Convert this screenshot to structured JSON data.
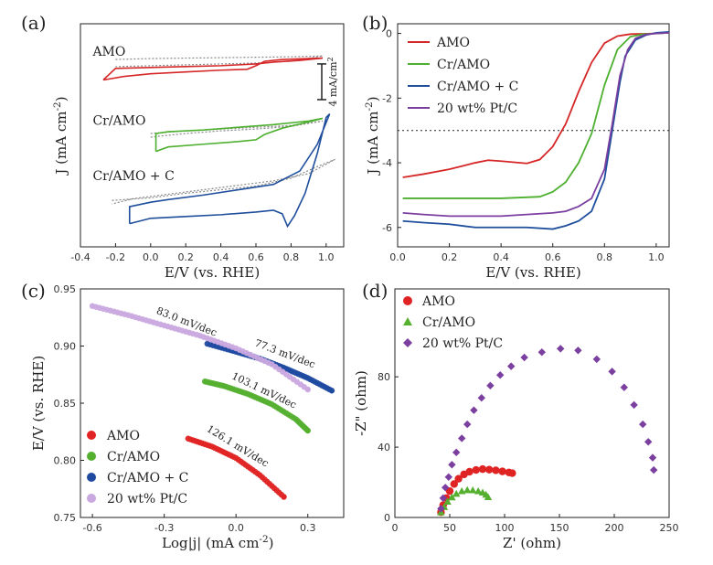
{
  "figure": {
    "panel_labels": [
      "(a)",
      "(b)",
      "(c)",
      "(d)"
    ]
  },
  "chart_data": [
    {
      "id": "a",
      "type": "line",
      "xlabel": "E/V (vs. RHE)",
      "ylabel": "J (mA cm",
      "ylabel_sup": "-2",
      "ylabel_close": ")",
      "xlim": [
        -0.4,
        1.1
      ],
      "xticks": [
        -0.4,
        -0.2,
        0.0,
        0.2,
        0.4,
        0.6,
        0.8,
        1.0
      ],
      "xticklabels": [
        "-0.4",
        "-0.2",
        "0.0",
        "0.2",
        "0.4",
        "0.6",
        "0.8",
        "1.0"
      ],
      "ylim": [
        -23,
        2
      ],
      "scalebar_label": "4 mA/cm",
      "scalebar_sup": "2",
      "scalebar": [
        -2.5,
        -6.5
      ],
      "series": [
        {
          "name": "AMO",
          "color": "#d62728",
          "label_at": [
            -0.33,
            -1.6
          ],
          "solid": [
            [
              -0.27,
              -4.3
            ],
            [
              -0.15,
              -3.9
            ],
            [
              0.0,
              -3.6
            ],
            [
              0.2,
              -3.4
            ],
            [
              0.4,
              -3.2
            ],
            [
              0.55,
              -3.1
            ],
            [
              0.6,
              -2.7
            ],
            [
              0.65,
              -2.2
            ],
            [
              0.75,
              -2.0
            ],
            [
              0.9,
              -1.9
            ],
            [
              0.98,
              -1.85
            ],
            [
              0.85,
              -2.1
            ],
            [
              0.7,
              -2.3
            ],
            [
              0.6,
              -2.5
            ],
            [
              0.4,
              -2.7
            ],
            [
              0.2,
              -2.8
            ],
            [
              0.0,
              -2.9
            ],
            [
              -0.2,
              -3.0
            ],
            [
              -0.27,
              -4.3
            ]
          ],
          "dotted": [
            [
              -0.2,
              -2.0
            ],
            [
              0.0,
              -1.9
            ],
            [
              0.2,
              -1.85
            ],
            [
              0.4,
              -1.8
            ],
            [
              0.6,
              -1.75
            ],
            [
              0.8,
              -1.7
            ],
            [
              0.98,
              -1.6
            ],
            [
              0.8,
              -2.2
            ],
            [
              0.6,
              -2.4
            ],
            [
              0.4,
              -2.5
            ],
            [
              0.2,
              -2.6
            ],
            [
              0.0,
              -2.7
            ],
            [
              -0.2,
              -2.8
            ]
          ]
        },
        {
          "name": "Cr/AMO",
          "color": "#4caf2e",
          "label_at": [
            -0.33,
            -9.3
          ],
          "solid": [
            [
              0.03,
              -12.3
            ],
            [
              0.1,
              -11.8
            ],
            [
              0.3,
              -11.5
            ],
            [
              0.5,
              -11.2
            ],
            [
              0.6,
              -11.0
            ],
            [
              0.65,
              -10.4
            ],
            [
              0.75,
              -9.7
            ],
            [
              0.9,
              -9.0
            ],
            [
              0.98,
              -8.6
            ],
            [
              0.9,
              -8.9
            ],
            [
              0.7,
              -9.3
            ],
            [
              0.5,
              -9.6
            ],
            [
              0.3,
              -9.9
            ],
            [
              0.1,
              -10.1
            ],
            [
              0.03,
              -10.3
            ],
            [
              0.03,
              -12.3
            ]
          ],
          "dotted": [
            [
              0.0,
              -10.7
            ],
            [
              0.2,
              -10.3
            ],
            [
              0.4,
              -10.0
            ],
            [
              0.6,
              -9.8
            ],
            [
              0.8,
              -9.5
            ],
            [
              0.98,
              -8.9
            ],
            [
              0.8,
              -9.4
            ],
            [
              0.6,
              -9.6
            ],
            [
              0.4,
              -9.8
            ],
            [
              0.2,
              -10.0
            ],
            [
              0.0,
              -10.3
            ]
          ]
        },
        {
          "name": "Cr/AMO + C",
          "color": "#1f4e9c",
          "label_at": [
            -0.33,
            -15.5
          ],
          "solid": [
            [
              -0.12,
              -20.4
            ],
            [
              0.0,
              -19.8
            ],
            [
              0.2,
              -19.6
            ],
            [
              0.4,
              -19.4
            ],
            [
              0.6,
              -19.1
            ],
            [
              0.7,
              -18.9
            ],
            [
              0.75,
              -19.3
            ],
            [
              0.78,
              -20.7
            ],
            [
              0.82,
              -19.5
            ],
            [
              0.88,
              -17.0
            ],
            [
              0.95,
              -12.5
            ],
            [
              1.0,
              -8.5
            ],
            [
              1.02,
              -8.1
            ],
            [
              0.95,
              -11.5
            ],
            [
              0.85,
              -14.5
            ],
            [
              0.7,
              -16.0
            ],
            [
              0.5,
              -16.6
            ],
            [
              0.3,
              -17.2
            ],
            [
              0.1,
              -17.7
            ],
            [
              0.0,
              -18.0
            ],
            [
              -0.12,
              -18.5
            ],
            [
              -0.12,
              -20.4
            ]
          ],
          "dotted": [
            [
              -0.22,
              -17.8
            ],
            [
              0.0,
              -17.5
            ],
            [
              0.2,
              -17.0
            ],
            [
              0.4,
              -16.6
            ],
            [
              0.6,
              -16.2
            ],
            [
              0.8,
              -15.3
            ],
            [
              0.95,
              -14.0
            ],
            [
              1.05,
              -13.2
            ],
            [
              0.9,
              -14.8
            ],
            [
              0.7,
              -15.6
            ],
            [
              0.5,
              -16.1
            ],
            [
              0.3,
              -16.6
            ],
            [
              0.1,
              -17.1
            ],
            [
              -0.1,
              -17.6
            ],
            [
              -0.22,
              -18.2
            ]
          ]
        }
      ]
    },
    {
      "id": "b",
      "type": "line",
      "xlabel": "E/V (vs. RHE)",
      "ylabel": "J (mA cm",
      "ylabel_sup": "-2",
      "ylabel_close": ")",
      "xlim": [
        0.0,
        1.05
      ],
      "xticks": [
        0.0,
        0.2,
        0.4,
        0.6,
        0.8,
        1.0
      ],
      "xticklabels": [
        "0.0",
        "0.2",
        "0.4",
        "0.6",
        "0.8",
        "1.0"
      ],
      "ylim": [
        -6.6,
        0.3
      ],
      "yticks": [
        0,
        -2,
        -4,
        -6
      ],
      "yticklabels": [
        "0",
        "-2",
        "-4",
        "-6"
      ],
      "hline": -3,
      "series": [
        {
          "name": "AMO",
          "color": "#d62728",
          "x": [
            0.02,
            0.1,
            0.2,
            0.3,
            0.35,
            0.4,
            0.5,
            0.55,
            0.6,
            0.65,
            0.7,
            0.75,
            0.8,
            0.85,
            0.9,
            1.0,
            1.05
          ],
          "y": [
            -4.45,
            -4.35,
            -4.2,
            -4.0,
            -3.92,
            -3.95,
            -4.02,
            -3.9,
            -3.5,
            -2.8,
            -1.8,
            -0.9,
            -0.3,
            -0.08,
            -0.02,
            0.0,
            0.02
          ]
        },
        {
          "name": "Cr/AMO",
          "color": "#4caf2e",
          "x": [
            0.02,
            0.2,
            0.4,
            0.55,
            0.6,
            0.65,
            0.7,
            0.75,
            0.8,
            0.85,
            0.9,
            0.95,
            1.0,
            1.05
          ],
          "y": [
            -5.1,
            -5.1,
            -5.1,
            -5.05,
            -4.9,
            -4.6,
            -4.0,
            -3.1,
            -1.6,
            -0.5,
            -0.1,
            -0.02,
            0.0,
            0.02
          ]
        },
        {
          "name": "Cr/AMO + C",
          "color": "#1f4e9c",
          "x": [
            0.02,
            0.1,
            0.2,
            0.3,
            0.4,
            0.5,
            0.6,
            0.65,
            0.7,
            0.75,
            0.8,
            0.83,
            0.86,
            0.88,
            0.92,
            0.96,
            1.0,
            1.05
          ],
          "y": [
            -5.8,
            -5.85,
            -5.9,
            -6.0,
            -6.0,
            -6.0,
            -6.05,
            -5.95,
            -5.8,
            -5.5,
            -4.5,
            -3.0,
            -1.5,
            -0.7,
            -0.2,
            -0.05,
            0.02,
            0.05
          ]
        },
        {
          "name": "20 wt% Pt/C",
          "color": "#7b3fa0",
          "x": [
            0.02,
            0.1,
            0.2,
            0.3,
            0.4,
            0.5,
            0.6,
            0.65,
            0.7,
            0.75,
            0.8,
            0.83,
            0.86,
            0.89,
            0.92,
            0.96,
            1.0,
            1.05
          ],
          "y": [
            -5.55,
            -5.6,
            -5.65,
            -5.65,
            -5.65,
            -5.6,
            -5.55,
            -5.5,
            -5.35,
            -5.1,
            -4.2,
            -2.8,
            -1.3,
            -0.5,
            -0.15,
            -0.03,
            0.0,
            0.02
          ]
        }
      ]
    },
    {
      "id": "c",
      "type": "scatter",
      "xlabel": "Log|j| (mA cm",
      "xlabel_sup": "-2",
      "xlabel_close": ")",
      "ylabel": "E/V (vs. RHE)",
      "xlim": [
        -0.65,
        0.45
      ],
      "ylim": [
        0.75,
        0.95
      ],
      "xticks": [
        -0.6,
        -0.3,
        0.0,
        0.3
      ],
      "xticklabels": [
        "-0.6",
        "-0.3",
        "0.0",
        "0.3"
      ],
      "yticks": [
        0.75,
        0.8,
        0.85,
        0.9,
        0.95
      ],
      "yticklabels": [
        "0.75",
        "0.80",
        "0.85",
        "0.90",
        "0.95"
      ],
      "series": [
        {
          "name": "AMO",
          "color": "#e02424",
          "slope_label": "126.1 mV/dec",
          "x": [
            -0.2,
            -0.1,
            0.0,
            0.1,
            0.2
          ],
          "y": [
            0.819,
            0.812,
            0.802,
            0.787,
            0.768
          ]
        },
        {
          "name": "Cr/AMO",
          "color": "#55b030",
          "slope_label": "103.1 mV/dec",
          "x": [
            -0.13,
            -0.05,
            0.05,
            0.15,
            0.25,
            0.3
          ],
          "y": [
            0.869,
            0.865,
            0.858,
            0.849,
            0.836,
            0.826
          ]
        },
        {
          "name": "Cr/AMO + C",
          "color": "#1f4aa0",
          "slope_label": "77.3 mV/dec",
          "x": [
            -0.12,
            0.0,
            0.1,
            0.2,
            0.3,
            0.4
          ],
          "y": [
            0.902,
            0.895,
            0.889,
            0.881,
            0.872,
            0.861
          ]
        },
        {
          "name": "20 wt% Pt/C",
          "color": "#c9a8df",
          "slope_label": "83.0 mV/dec",
          "x": [
            -0.6,
            -0.45,
            -0.3,
            -0.15,
            0.0,
            0.15,
            0.3
          ],
          "y": [
            0.935,
            0.927,
            0.918,
            0.909,
            0.898,
            0.884,
            0.862
          ]
        }
      ]
    },
    {
      "id": "d",
      "type": "scatter",
      "xlabel": "Z' (ohm)",
      "ylabel": "-Z\" (ohm)",
      "xlim": [
        0,
        250
      ],
      "ylim": [
        0,
        130
      ],
      "xticks": [
        0,
        50,
        100,
        150,
        200,
        250
      ],
      "xticklabels": [
        "0",
        "50",
        "100",
        "150",
        "200",
        "250"
      ],
      "yticks": [
        0,
        40,
        80
      ],
      "yticklabels": [
        "0",
        "40",
        "80"
      ],
      "series": [
        {
          "name": "AMO",
          "color": "#e02424",
          "marker": "circle",
          "x": [
            42,
            44,
            47,
            50,
            54,
            58,
            63,
            68,
            74,
            80,
            86,
            92,
            98,
            104,
            107
          ],
          "y": [
            3,
            7,
            11,
            15,
            19,
            22,
            24.5,
            26,
            27,
            27.5,
            27.2,
            26.8,
            26.2,
            25.6,
            25.2
          ]
        },
        {
          "name": "Cr/AMO",
          "color": "#55b030",
          "marker": "triangle",
          "x": [
            42,
            45,
            48,
            52,
            56,
            61,
            66,
            71,
            76,
            80,
            83,
            85
          ],
          "y": [
            3,
            6,
            9,
            11.5,
            13.5,
            15,
            15.6,
            15.5,
            15.0,
            14.2,
            13.0,
            11.6
          ]
        },
        {
          "name": "20 wt% Pt/C",
          "color": "#7b3fa0",
          "marker": "diamond",
          "x": [
            42,
            44,
            46,
            49,
            52,
            56,
            61,
            66,
            72,
            79,
            87,
            96,
            106,
            118,
            134,
            151,
            167,
            184,
            198,
            209,
            218,
            226,
            231,
            235,
            236
          ],
          "y": [
            5,
            11,
            17,
            23,
            30,
            37,
            45,
            53,
            61,
            68,
            75,
            81,
            86,
            91,
            94,
            96,
            95,
            90,
            83,
            74,
            64,
            53,
            43,
            34,
            27
          ]
        }
      ]
    }
  ]
}
